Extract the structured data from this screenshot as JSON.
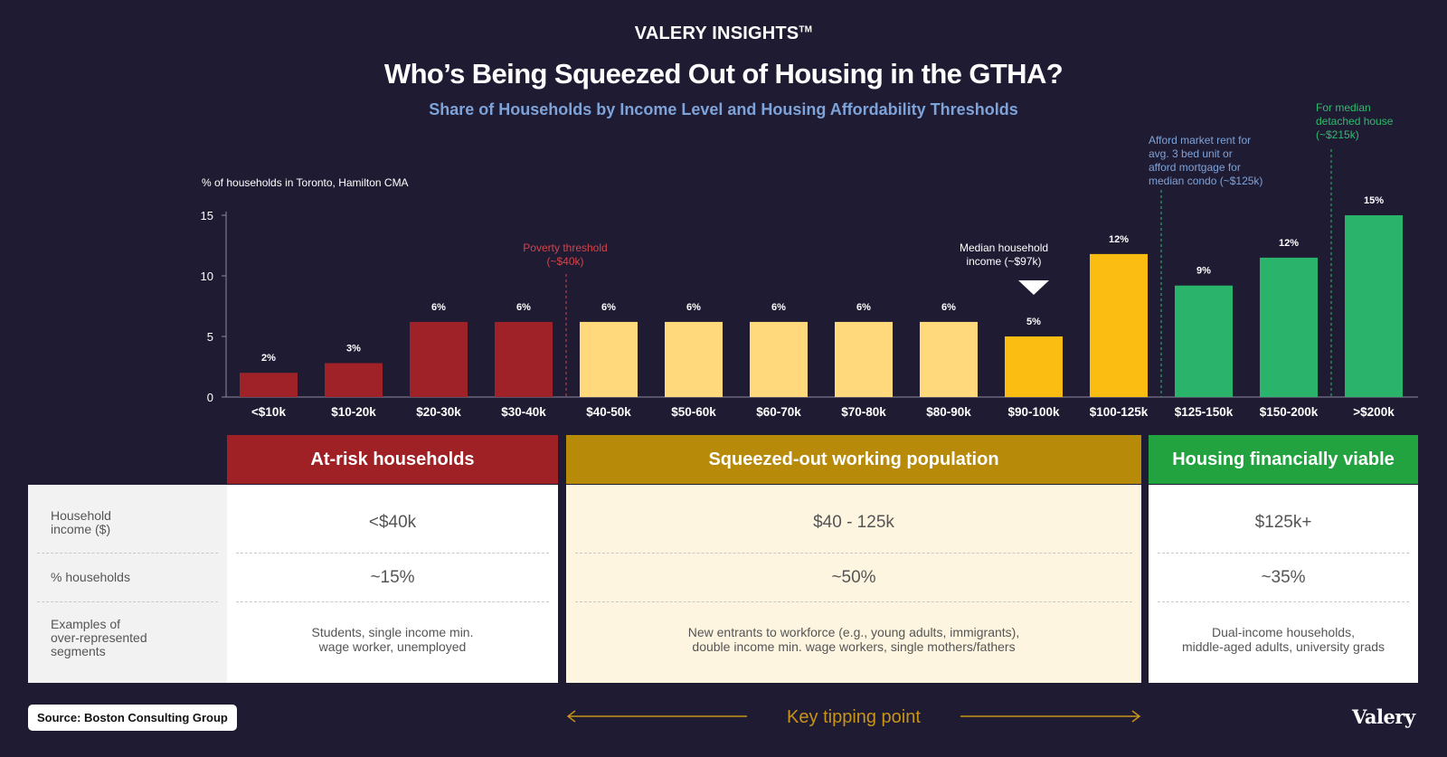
{
  "header": {
    "brand": "VALERY INSIGHTS",
    "brand_mark": "TM",
    "title": "Who’s Being Squeezed Out of Housing in the GTHA?",
    "subtitle": "Share of Households by Income Level and Housing Affordability Thresholds"
  },
  "chart_data": {
    "type": "bar",
    "ylabel": "% of households in Toronto, Hamilton CMA",
    "ylim": [
      0,
      15
    ],
    "yticks": [
      0,
      5,
      10,
      15
    ],
    "categories": [
      "<$10k",
      "$10-20k",
      "$20-30k",
      "$30-40k",
      "$40-50k",
      "$50-60k",
      "$60-70k",
      "$70-80k",
      "$80-90k",
      "$90-100k",
      "$100-125k",
      "$125-150k",
      "$150-200k",
      ">$200k"
    ],
    "values": [
      2,
      2.8,
      6.2,
      6.2,
      6.2,
      6.2,
      6.2,
      6.2,
      6.2,
      5,
      11.8,
      9.2,
      11.5,
      15
    ],
    "value_labels": [
      "2%",
      "3%",
      "6%",
      "6%",
      "6%",
      "6%",
      "6%",
      "6%",
      "6%",
      "5%",
      "12%",
      "9%",
      "12%",
      "15%"
    ],
    "colors": [
      "#9e2228",
      "#9e2228",
      "#9e2228",
      "#9e2228",
      "#ffd97c",
      "#ffd97c",
      "#ffd97c",
      "#ffd97c",
      "#ffd97c",
      "#fbbd12",
      "#fbbd12",
      "#2ab36a",
      "#2ab36a",
      "#2ab36a"
    ],
    "annotations": {
      "poverty": "Poverty threshold\n(~$40k)",
      "median": "Median household\nincome (~$97k)",
      "rent": "Afford market rent for\navg. 3 bed unit or\nafford mortgage for\nmedian condo (~$125k)",
      "detached": "For median\ndetached house\n(~$215k)"
    },
    "annotation_colors": {
      "poverty": "#d2444a",
      "rent": "#7ea3d8",
      "detached": "#2fbb6d"
    }
  },
  "table": {
    "row_labels": {
      "income": "Household\nincome ($)",
      "share": "% households",
      "examples": "Examples of\nover-represented\nsegments"
    },
    "groups": {
      "risk": {
        "title": "At-risk households",
        "income": "<$40k",
        "share": "~15%",
        "examples": "Students, single income min.\nwage worker, unemployed"
      },
      "squeezed": {
        "title": "Squeezed-out working population",
        "income": "$40 - 125k",
        "share": "~50%",
        "examples": "New entrants to workforce (e.g., young adults, immigrants),\ndouble income min. wage workers, single mothers/fathers"
      },
      "viable": {
        "title": "Housing financially viable",
        "income": "$125k+",
        "share": "~35%",
        "examples": "Dual-income households,\nmiddle-aged adults, university grads"
      }
    }
  },
  "footer": {
    "source": "Source: Boston Consulting Group",
    "tipping": "Key tipping point",
    "logo": "Valery"
  }
}
